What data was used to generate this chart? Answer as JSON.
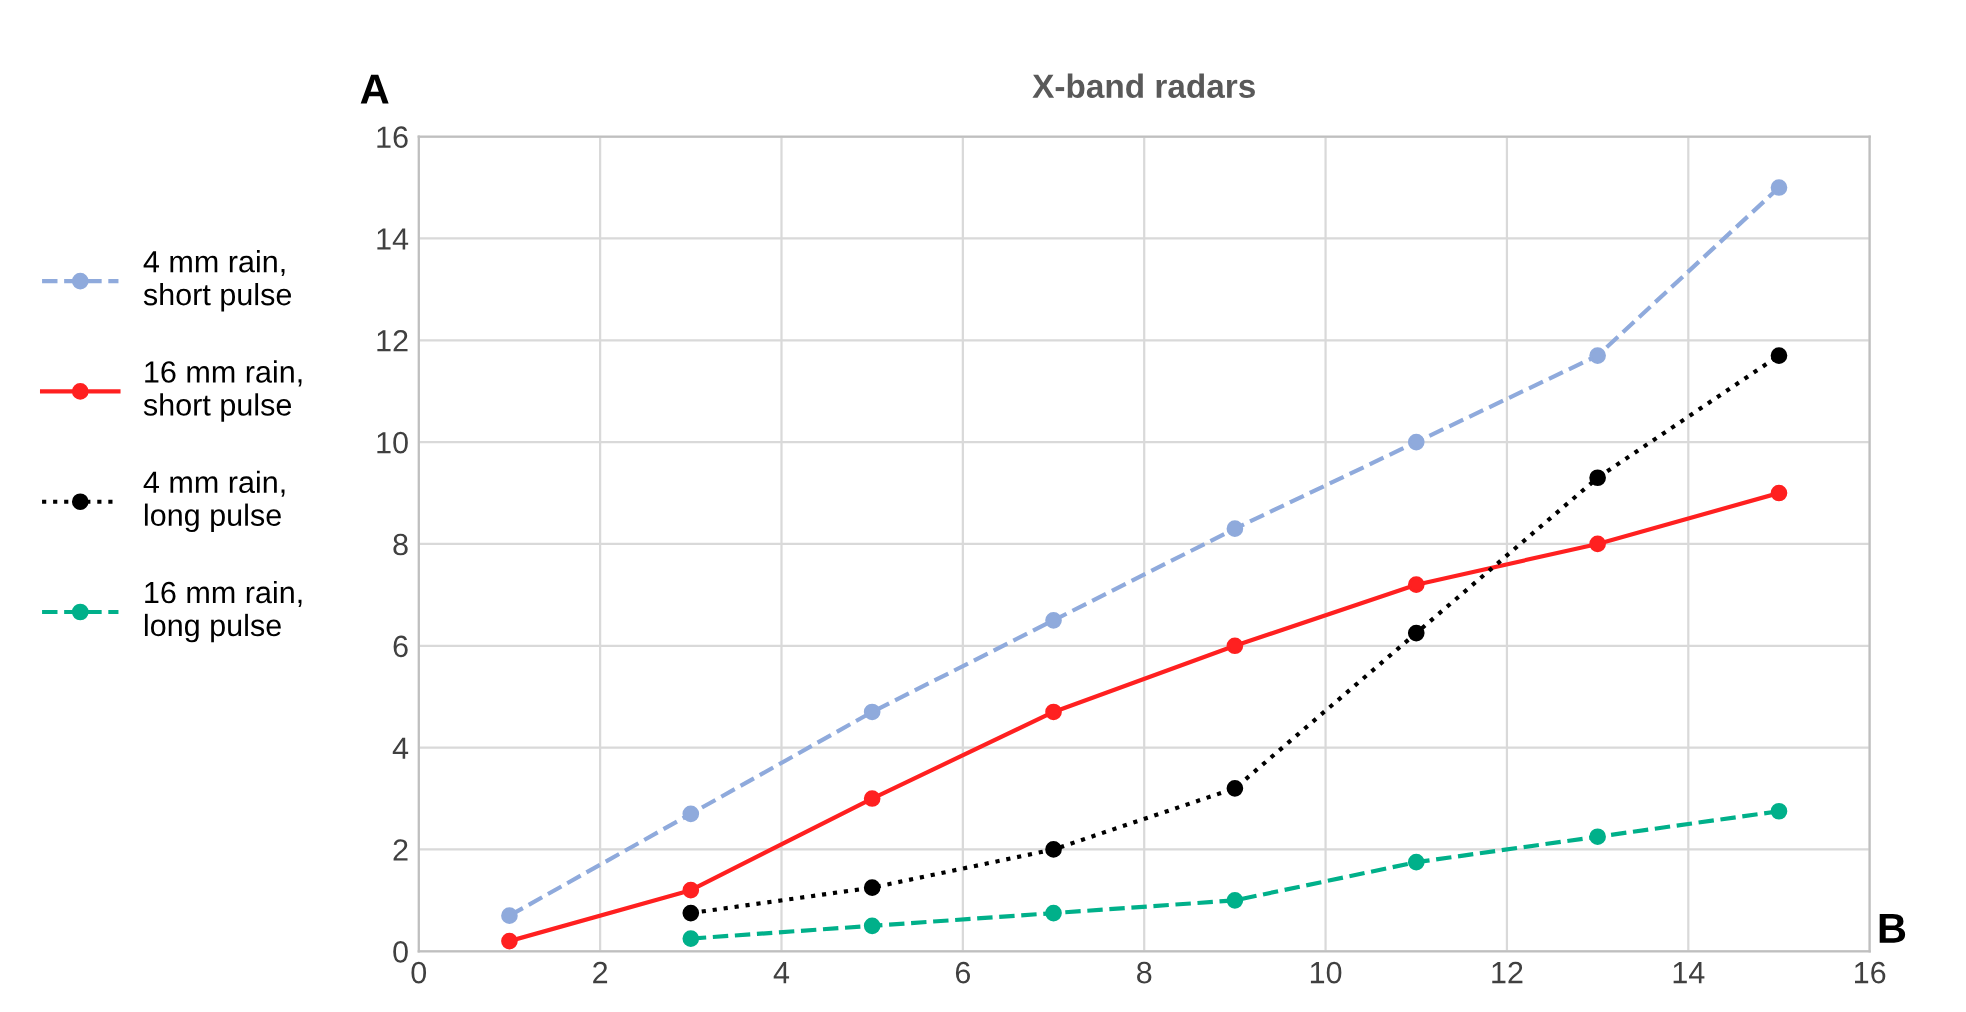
{
  "chart_data": {
    "type": "line",
    "title": "X-band radars",
    "xlabel": "B",
    "ylabel": "A",
    "xlim": [
      0,
      16
    ],
    "xticks": [
      0,
      2,
      4,
      6,
      8,
      10,
      12,
      14,
      16
    ],
    "ylim": [
      0,
      16
    ],
    "yticks": [
      0,
      2,
      4,
      6,
      8,
      10,
      12,
      14,
      16
    ],
    "grid": true,
    "legend": "left",
    "marker": "circle",
    "series": [
      {
        "name": "4 mm rain,\nshort pulse",
        "color": "#8faadc",
        "line_style": "dashed",
        "x": [
          1,
          3,
          5,
          7,
          9,
          11,
          13,
          15
        ],
        "values": [
          0.7,
          2.7,
          4.7,
          6.5,
          8.3,
          10.0,
          11.7,
          15.0
        ]
      },
      {
        "name": "16 mm rain,\nshort pulse",
        "color": "#ff2020",
        "line_style": "solid",
        "x": [
          1,
          3,
          5,
          7,
          9,
          11,
          13,
          15
        ],
        "values": [
          0.2,
          1.2,
          3.0,
          4.7,
          6.0,
          7.2,
          8.0,
          9.0
        ]
      },
      {
        "name": "4 mm rain,\nlong pulse",
        "color": "#000000",
        "line_style": "dotted",
        "x": [
          3,
          5,
          7,
          9,
          11,
          13,
          15
        ],
        "values": [
          0.75,
          1.25,
          2.0,
          3.2,
          6.25,
          9.3,
          11.7
        ]
      },
      {
        "name": "16 mm rain,\nlong pulse",
        "color": "#00b08a",
        "line_style": "dashed",
        "x": [
          3,
          5,
          7,
          9,
          11,
          13,
          15
        ],
        "values": [
          0.25,
          0.5,
          0.75,
          1.0,
          1.75,
          2.25,
          2.75
        ]
      }
    ]
  }
}
